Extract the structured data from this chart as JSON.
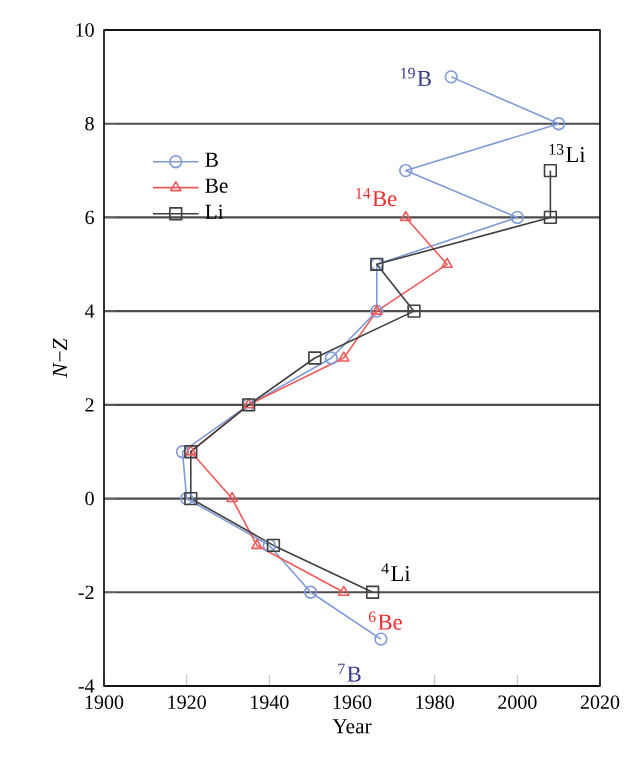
{
  "chart_data": {
    "type": "line",
    "xlabel": "Year",
    "ylabel": "*N*−*Z*",
    "xlim": [
      1900,
      2020
    ],
    "xticks": [
      1900,
      1920,
      1940,
      1960,
      1980,
      2000,
      2020
    ],
    "ylim": [
      -4,
      10
    ],
    "yticks": [
      -4,
      -2,
      0,
      2,
      4,
      6,
      8,
      10
    ],
    "grid": "y",
    "legend": "top left",
    "series": [
      {
        "name": "B",
        "color": "#7f9ad6",
        "marker": "circle",
        "x": [
          1967,
          1950,
          1940,
          1920,
          1919,
          1935,
          1955,
          1966,
          1966,
          2000,
          1973,
          2010,
          1984
        ],
        "values": [
          -3,
          -2,
          -1,
          0,
          1,
          2,
          3,
          4,
          5,
          6,
          7,
          8,
          9
        ]
      },
      {
        "name": "Be",
        "color": "#ee5a5a",
        "marker": "triangle",
        "x": [
          1958,
          1937,
          1931,
          1921,
          1935,
          1958,
          1966,
          1983,
          1973
        ],
        "values": [
          -2,
          -1,
          0,
          1,
          2,
          3,
          4,
          5,
          6
        ]
      },
      {
        "name": "Li",
        "color": "#404040",
        "marker": "square",
        "x": [
          1965,
          1941,
          1921,
          1921,
          1935,
          1951,
          1975,
          1966,
          2008,
          2008
        ],
        "values": [
          -2,
          -1,
          0,
          1,
          2,
          3,
          4,
          5,
          6,
          7
        ]
      }
    ],
    "annotations": [
      {
        "text": "$^{19}$B",
        "x": 1984,
        "y": 9
      },
      {
        "text": "$^{13}$Li",
        "x": 2008,
        "y": 7
      },
      {
        "text": "$^{14}$Be",
        "x": 1973,
        "y": 6
      },
      {
        "text": "$^{4}$Li",
        "x": 1965,
        "y": -2
      },
      {
        "text": "$^{6}$Be",
        "x": 1958,
        "y": -2
      },
      {
        "text": "$^{7}$B",
        "x": 1967,
        "y": -3
      }
    ]
  }
}
